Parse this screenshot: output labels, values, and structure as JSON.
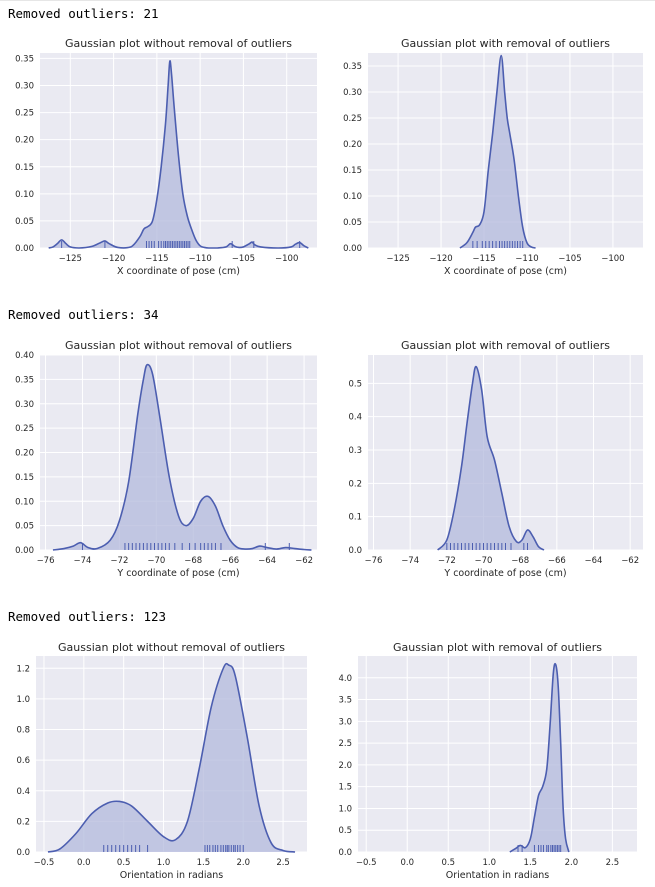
{
  "outputs": [
    {
      "text": "Removed outliers: 21"
    },
    {
      "text": "Removed outliers: 34"
    },
    {
      "text": "Removed outliers: 123"
    }
  ],
  "colors": {
    "plot_bg": "#eaeaf2",
    "grid": "#ffffff",
    "line": "#4c5eb0",
    "fill": "#b3b9dc"
  },
  "chart_data": [
    {
      "type": "area",
      "title": "Gaussian plot without removal of outliers",
      "xlabel": "X coordinate of pose (cm)",
      "ylabel": "",
      "xlim": [
        -128.5,
        -96.5
      ],
      "ylim": [
        0,
        0.36
      ],
      "xticks": [
        -125,
        -120,
        -115,
        -110,
        -105,
        -100
      ],
      "yticks": [
        0.0,
        0.05,
        0.1,
        0.15,
        0.2,
        0.25,
        0.3,
        0.35
      ],
      "x_tick_labels": [
        "−125",
        "−120",
        "−115",
        "−110",
        "−105",
        "−100"
      ],
      "y_tick_labels": [
        "0.00",
        "0.05",
        "0.10",
        "0.15",
        "0.20",
        "0.25",
        "0.30",
        "0.35"
      ],
      "grid": true,
      "kde": {
        "x": [
          -127.5,
          -127,
          -126.5,
          -126,
          -125.5,
          -125,
          -124,
          -122.5,
          -121.5,
          -121,
          -120.5,
          -119.5,
          -118,
          -117,
          -116.5,
          -116,
          -115.5,
          -115,
          -114.5,
          -114,
          -113.7,
          -113.5,
          -113.3,
          -113,
          -112.5,
          -112,
          -111.5,
          -111,
          -110.5,
          -110,
          -109.5,
          -109,
          -108,
          -107,
          -106.5,
          -106,
          -105.5,
          -105,
          -104.3,
          -104,
          -103.7,
          -103,
          -101,
          -99.5,
          -99,
          -98.5,
          -98,
          -97.5
        ],
        "y": [
          0.0,
          0.002,
          0.008,
          0.015,
          0.008,
          0.002,
          0.0,
          0.003,
          0.01,
          0.013,
          0.008,
          0.001,
          0.002,
          0.02,
          0.035,
          0.04,
          0.05,
          0.09,
          0.15,
          0.23,
          0.3,
          0.345,
          0.32,
          0.26,
          0.17,
          0.1,
          0.06,
          0.035,
          0.015,
          0.004,
          0.001,
          0.0,
          0.0,
          0.002,
          0.008,
          0.003,
          0.001,
          0.002,
          0.008,
          0.011,
          0.006,
          0.002,
          0.0,
          0.002,
          0.007,
          0.01,
          0.004,
          0.0
        ]
      },
      "rug": [
        -126.0,
        -121.0,
        -116.2,
        -115.9,
        -115.6,
        -115.3,
        -114.8,
        -114.5,
        -114.2,
        -114.0,
        -113.8,
        -113.6,
        -113.4,
        -113.2,
        -113.0,
        -112.8,
        -112.6,
        -112.4,
        -112.2,
        -112.0,
        -111.8,
        -111.6,
        -111.4,
        -111.2,
        -106.3,
        -103.8,
        -98.5
      ]
    },
    {
      "type": "area",
      "title": "Gaussian plot with removal of outliers",
      "xlabel": "X coordinate of pose (cm)",
      "ylabel": "",
      "xlim": [
        -128.5,
        -96.5
      ],
      "ylim": [
        0,
        0.375
      ],
      "xticks": [
        -125,
        -120,
        -115,
        -110,
        -105,
        -100
      ],
      "yticks": [
        0.0,
        0.05,
        0.1,
        0.15,
        0.2,
        0.25,
        0.3,
        0.35
      ],
      "x_tick_labels": [
        "−125",
        "−120",
        "−115",
        "−110",
        "−105",
        "−100"
      ],
      "y_tick_labels": [
        "0.00",
        "0.05",
        "0.10",
        "0.15",
        "0.20",
        "0.25",
        "0.30",
        "0.35"
      ],
      "grid": true,
      "kde": {
        "x": [
          -117.8,
          -117,
          -116.3,
          -116,
          -115.5,
          -115,
          -114.5,
          -114,
          -113.5,
          -113,
          -112.6,
          -112.3,
          -112,
          -111.5,
          -111,
          -110.5,
          -110,
          -109.5,
          -109
        ],
        "y": [
          0.0,
          0.01,
          0.03,
          0.04,
          0.045,
          0.07,
          0.15,
          0.22,
          0.3,
          0.37,
          0.3,
          0.25,
          0.22,
          0.17,
          0.1,
          0.04,
          0.01,
          0.002,
          0.0
        ]
      },
      "rug": [
        -116.3,
        -115.8,
        -115.2,
        -114.8,
        -114.4,
        -114.0,
        -113.6,
        -113.2,
        -112.9,
        -112.6,
        -112.3,
        -112.0,
        -111.7,
        -111.4,
        -111.1,
        -110.8,
        -110.5
      ]
    },
    {
      "type": "area",
      "title": "Gaussian plot without removal of outliers",
      "xlabel": "Y coordinate of pose (cm)",
      "ylabel": "",
      "xlim": [
        -76.3,
        -61.3
      ],
      "ylim": [
        0,
        0.4
      ],
      "xticks": [
        -76,
        -74,
        -72,
        -70,
        -68,
        -66,
        -64,
        -62
      ],
      "yticks": [
        0.0,
        0.05,
        0.1,
        0.15,
        0.2,
        0.25,
        0.3,
        0.35,
        0.4
      ],
      "x_tick_labels": [
        "−76",
        "−74",
        "−72",
        "−70",
        "−68",
        "−66",
        "−64",
        "−62"
      ],
      "y_tick_labels": [
        "0.00",
        "0.05",
        "0.10",
        "0.15",
        "0.20",
        "0.25",
        "0.30",
        "0.35",
        "0.40"
      ],
      "grid": true,
      "kde": {
        "x": [
          -75.6,
          -75,
          -74.5,
          -74.1,
          -73.7,
          -73.2,
          -72.5,
          -72,
          -71.5,
          -71,
          -70.7,
          -70.5,
          -70.2,
          -69.8,
          -69.3,
          -68.8,
          -68.4,
          -68,
          -67.6,
          -67.2,
          -66.8,
          -66.4,
          -66,
          -65.6,
          -65.2,
          -64.8,
          -64.4,
          -64,
          -63.5,
          -63,
          -62.5,
          -62,
          -61.6
        ],
        "y": [
          0.0,
          0.003,
          0.008,
          0.015,
          0.005,
          0.003,
          0.02,
          0.06,
          0.14,
          0.28,
          0.35,
          0.38,
          0.36,
          0.27,
          0.15,
          0.07,
          0.05,
          0.065,
          0.1,
          0.11,
          0.09,
          0.05,
          0.02,
          0.005,
          0.002,
          0.003,
          0.008,
          0.005,
          0.002,
          0.005,
          0.003,
          0.001,
          0.0
        ]
      },
      "rug": [
        -74.0,
        -71.7,
        -71.5,
        -71.3,
        -71.1,
        -70.9,
        -70.7,
        -70.5,
        -70.3,
        -70.1,
        -69.9,
        -69.7,
        -69.5,
        -69.3,
        -69.0,
        -68.6,
        -68.2,
        -67.9,
        -67.6,
        -67.4,
        -67.2,
        -67.0,
        -66.8,
        -66.5,
        -64.1,
        -62.8
      ]
    },
    {
      "type": "area",
      "title": "Gaussian plot with removal of outliers",
      "xlabel": "Y coordinate of pose (cm)",
      "ylabel": "",
      "xlim": [
        -76.3,
        -61.3
      ],
      "ylim": [
        0,
        0.585
      ],
      "xticks": [
        -76,
        -74,
        -72,
        -70,
        -68,
        -66,
        -64,
        -62
      ],
      "yticks": [
        0.0,
        0.1,
        0.2,
        0.3,
        0.4,
        0.5
      ],
      "x_tick_labels": [
        "−76",
        "−74",
        "−72",
        "−70",
        "−68",
        "−66",
        "−64",
        "−62"
      ],
      "y_tick_labels": [
        "0.0",
        "0.1",
        "0.2",
        "0.3",
        "0.4",
        "0.5"
      ],
      "grid": true,
      "kde": {
        "x": [
          -72.5,
          -72,
          -71.6,
          -71.2,
          -70.9,
          -70.6,
          -70.4,
          -70.1,
          -69.8,
          -69.4,
          -69,
          -68.6,
          -68.2,
          -67.9,
          -67.6,
          -67.3,
          -67,
          -66.7
        ],
        "y": [
          0.0,
          0.03,
          0.12,
          0.25,
          0.38,
          0.5,
          0.55,
          0.48,
          0.34,
          0.27,
          0.17,
          0.07,
          0.025,
          0.03,
          0.06,
          0.04,
          0.01,
          0.0
        ]
      },
      "rug": [
        -72.0,
        -71.8,
        -71.6,
        -71.4,
        -71.2,
        -71.0,
        -70.8,
        -70.6,
        -70.4,
        -70.2,
        -70.0,
        -69.8,
        -69.6,
        -69.4,
        -69.2,
        -69.0,
        -68.8,
        -68.5,
        -67.8,
        -67.6
      ]
    },
    {
      "type": "area",
      "title": "Gaussian plot without removal of outliers",
      "xlabel": "Orientation in radians",
      "ylabel": "",
      "xlim": [
        -0.6,
        2.8
      ],
      "ylim": [
        0,
        1.28
      ],
      "xticks": [
        -0.5,
        0.0,
        0.5,
        1.0,
        1.5,
        2.0,
        2.5
      ],
      "yticks": [
        0.0,
        0.2,
        0.4,
        0.6,
        0.8,
        1.0,
        1.2
      ],
      "x_tick_labels": [
        "−0.5",
        "0.0",
        "0.5",
        "1.0",
        "1.5",
        "2.0",
        "2.5"
      ],
      "y_tick_labels": [
        "0.0",
        "0.2",
        "0.4",
        "0.6",
        "0.8",
        "1.0",
        "1.2"
      ],
      "grid": true,
      "kde": {
        "x": [
          -0.45,
          -0.3,
          -0.1,
          0.1,
          0.3,
          0.45,
          0.6,
          0.8,
          1.0,
          1.15,
          1.3,
          1.45,
          1.6,
          1.75,
          1.82,
          1.9,
          2.05,
          2.2,
          2.35,
          2.5,
          2.65
        ],
        "y": [
          0.0,
          0.02,
          0.12,
          0.25,
          0.32,
          0.33,
          0.3,
          0.2,
          0.1,
          0.08,
          0.2,
          0.55,
          0.95,
          1.2,
          1.22,
          1.15,
          0.75,
          0.3,
          0.06,
          0.01,
          0.0
        ]
      },
      "rug": [
        0.25,
        0.3,
        0.35,
        0.4,
        0.45,
        0.5,
        0.55,
        0.6,
        0.65,
        0.7,
        0.8,
        1.52,
        1.55,
        1.58,
        1.62,
        1.65,
        1.68,
        1.72,
        1.75,
        1.78,
        1.8,
        1.82,
        1.85,
        1.88,
        1.9,
        1.93,
        1.96,
        2.0
      ]
    },
    {
      "type": "area",
      "title": "Gaussian plot with removal of outliers",
      "xlabel": "Orientation in radians",
      "ylabel": "",
      "xlim": [
        -0.6,
        2.8
      ],
      "ylim": [
        0,
        4.5
      ],
      "xticks": [
        -0.5,
        0.0,
        0.5,
        1.0,
        1.5,
        2.0,
        2.5
      ],
      "yticks": [
        0.0,
        0.5,
        1.0,
        1.5,
        2.0,
        2.5,
        3.0,
        3.5,
        4.0
      ],
      "x_tick_labels": [
        "−0.5",
        "0.0",
        "0.5",
        "1.0",
        "1.5",
        "2.0",
        "2.5"
      ],
      "y_tick_labels": [
        "0.0",
        "0.5",
        "1.0",
        "1.5",
        "2.0",
        "2.5",
        "3.0",
        "3.5",
        "4.0"
      ],
      "grid": true,
      "kde": {
        "x": [
          1.25,
          1.32,
          1.38,
          1.44,
          1.5,
          1.55,
          1.6,
          1.65,
          1.7,
          1.74,
          1.78,
          1.81,
          1.84,
          1.87,
          1.9,
          1.93,
          1.97
        ],
        "y": [
          0.0,
          0.08,
          0.15,
          0.1,
          0.3,
          0.8,
          1.3,
          1.5,
          1.9,
          2.9,
          4.1,
          4.3,
          3.8,
          2.5,
          1.0,
          0.3,
          0.0
        ]
      },
      "rug": [
        1.35,
        1.4,
        1.55,
        1.6,
        1.63,
        1.66,
        1.7,
        1.72,
        1.75,
        1.77,
        1.79,
        1.81,
        1.83,
        1.85,
        1.87
      ]
    }
  ]
}
